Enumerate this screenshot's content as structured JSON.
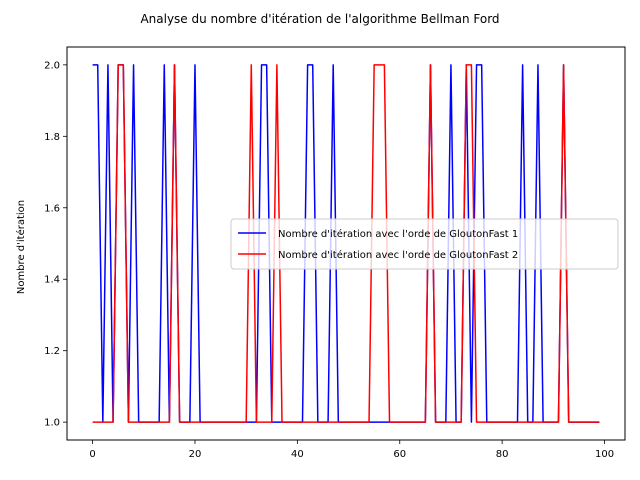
{
  "chart_data": {
    "type": "line",
    "title": "Analyse du nombre d'itération de l'algorithme Bellman Ford",
    "xlabel": "",
    "ylabel": "Nombre d'itération",
    "xlim": [
      -5,
      104
    ],
    "ylim": [
      0.95,
      2.05
    ],
    "x_ticks": [
      0,
      20,
      40,
      60,
      80,
      100
    ],
    "y_ticks": [
      1.0,
      1.2,
      1.4,
      1.6,
      1.8,
      2.0
    ],
    "x_tick_labels": [
      "0",
      "20",
      "40",
      "60",
      "80",
      "100"
    ],
    "y_tick_labels": [
      "1.0",
      "1.2",
      "1.4",
      "1.6",
      "1.8",
      "2.0"
    ],
    "grid": false,
    "legend_position": "center-right",
    "x": [
      0,
      1,
      2,
      3,
      4,
      5,
      6,
      7,
      8,
      9,
      10,
      11,
      12,
      13,
      14,
      15,
      16,
      17,
      18,
      19,
      20,
      21,
      22,
      23,
      24,
      25,
      26,
      27,
      28,
      29,
      30,
      31,
      32,
      33,
      34,
      35,
      36,
      37,
      38,
      39,
      40,
      41,
      42,
      43,
      44,
      45,
      46,
      47,
      48,
      49,
      50,
      51,
      52,
      53,
      54,
      55,
      56,
      57,
      58,
      59,
      60,
      61,
      62,
      63,
      64,
      65,
      66,
      67,
      68,
      69,
      70,
      71,
      72,
      73,
      74,
      75,
      76,
      77,
      78,
      79,
      80,
      81,
      82,
      83,
      84,
      85,
      86,
      87,
      88,
      89,
      90,
      91,
      92,
      93,
      94,
      95,
      96,
      97,
      98,
      99
    ],
    "series": [
      {
        "name": "Nombre d'itération avec l'orde de GloutonFast 1",
        "color": "#0000ff",
        "values": [
          2,
          2,
          1,
          2,
          1,
          2,
          2,
          1,
          2,
          1,
          1,
          1,
          1,
          1,
          2,
          1,
          2,
          1,
          1,
          1,
          2,
          1,
          1,
          1,
          1,
          1,
          1,
          1,
          1,
          1,
          1,
          1,
          1,
          2,
          2,
          1,
          1,
          1,
          1,
          1,
          1,
          1,
          2,
          2,
          1,
          1,
          1,
          2,
          1,
          1,
          1,
          1,
          1,
          1,
          1,
          1,
          1,
          1,
          1,
          1,
          1,
          1,
          1,
          1,
          1,
          1,
          2,
          1,
          1,
          1,
          2,
          1,
          1,
          2,
          1,
          2,
          2,
          1,
          1,
          1,
          1,
          1,
          1,
          1,
          2,
          1,
          1,
          2,
          1,
          1,
          1,
          1,
          2,
          1,
          1,
          1,
          1,
          1,
          1,
          1
        ]
      },
      {
        "name": "Nombre d'itération avec l'orde de GloutonFast 2",
        "color": "#ff0000",
        "values": [
          1,
          1,
          1,
          1,
          1,
          2,
          2,
          1,
          1,
          1,
          1,
          1,
          1,
          1,
          1,
          1,
          2,
          1,
          1,
          1,
          1,
          1,
          1,
          1,
          1,
          1,
          1,
          1,
          1,
          1,
          1,
          2,
          1,
          1,
          1,
          1,
          2,
          1,
          1,
          1,
          1,
          1,
          1,
          1,
          1,
          1,
          1,
          1,
          1,
          1,
          1,
          1,
          1,
          1,
          1,
          2,
          2,
          2,
          1,
          1,
          1,
          1,
          1,
          1,
          1,
          1,
          2,
          1,
          1,
          1,
          1,
          1,
          1,
          2,
          2,
          1,
          1,
          1,
          1,
          1,
          1,
          1,
          1,
          1,
          1,
          1,
          1,
          1,
          1,
          1,
          1,
          1,
          2,
          1,
          1,
          1,
          1,
          1,
          1,
          1
        ]
      }
    ]
  }
}
